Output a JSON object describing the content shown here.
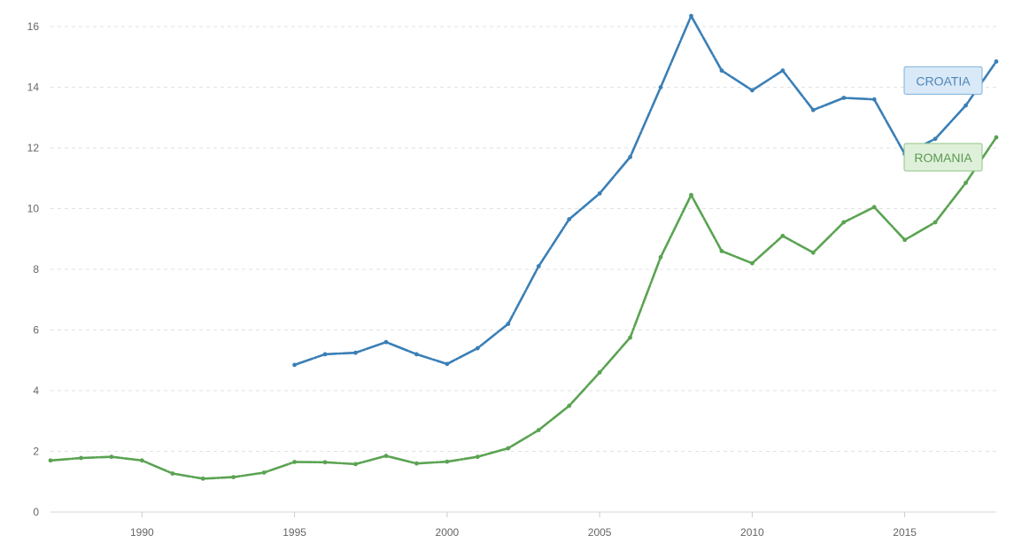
{
  "chart_data": {
    "type": "line",
    "title": "",
    "xlabel": "",
    "ylabel": "",
    "xlim": [
      1987,
      2018
    ],
    "ylim": [
      0,
      16
    ],
    "x_ticks": [
      1990,
      1995,
      2000,
      2005,
      2010,
      2015
    ],
    "y_ticks": [
      0,
      2,
      4,
      6,
      8,
      10,
      12,
      14,
      16
    ],
    "grid": "horizontal dashed",
    "legend": "inline labels near line ends",
    "series": [
      {
        "name": "CROATIA",
        "color": "#3a7fb6",
        "label_fill": "#d9e9f7",
        "label_stroke": "#7fb0da",
        "label_text_color": "#4f86b8",
        "x": [
          1995,
          1996,
          1997,
          1998,
          1999,
          2000,
          2001,
          2002,
          2003,
          2004,
          2005,
          2006,
          2007,
          2008,
          2009,
          2010,
          2011,
          2012,
          2013,
          2014,
          2015,
          2016,
          2017,
          2018
        ],
        "y": [
          4.85,
          5.2,
          5.25,
          5.6,
          5.2,
          4.88,
          5.4,
          6.2,
          8.1,
          9.65,
          10.5,
          11.7,
          14.0,
          16.35,
          14.55,
          13.9,
          14.55,
          13.25,
          13.65,
          13.6,
          11.8,
          12.3,
          13.4,
          14.85
        ]
      },
      {
        "name": "ROMANIA",
        "color": "#5aa352",
        "label_fill": "#dff0da",
        "label_stroke": "#8cc685",
        "label_text_color": "#5b9a52",
        "x": [
          1987,
          1988,
          1989,
          1990,
          1991,
          1992,
          1993,
          1994,
          1995,
          1996,
          1997,
          1998,
          1999,
          2000,
          2001,
          2002,
          2003,
          2004,
          2005,
          2006,
          2007,
          2008,
          2009,
          2010,
          2011,
          2012,
          2013,
          2014,
          2015,
          2016,
          2017,
          2018
        ],
        "y": [
          1.7,
          1.78,
          1.82,
          1.7,
          1.27,
          1.1,
          1.15,
          1.3,
          1.65,
          1.64,
          1.58,
          1.85,
          1.6,
          1.66,
          1.82,
          2.1,
          2.7,
          3.5,
          4.6,
          5.75,
          8.4,
          10.45,
          8.6,
          8.2,
          9.1,
          8.55,
          9.55,
          10.05,
          8.97,
          9.55,
          10.85,
          12.35
        ]
      }
    ]
  }
}
